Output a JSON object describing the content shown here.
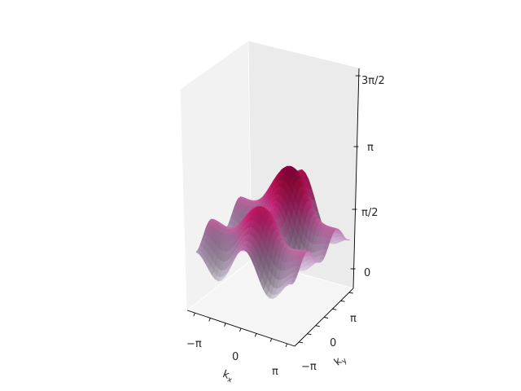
{
  "chart_data": {
    "type": "surface3d",
    "title": "",
    "xlabel": "k_x",
    "ylabel": "k_y",
    "zlabel": "",
    "x_ticks": [
      "−π",
      "0",
      "π"
    ],
    "y_ticks": [
      "−π",
      "0",
      "π"
    ],
    "z_ticks": [
      "0",
      "π/2",
      "π",
      "3π/2"
    ],
    "xlim": [
      -3.5,
      3.5
    ],
    "ylim": [
      -3.5,
      3.5
    ],
    "zlim": [
      -0.2,
      4.71
    ],
    "colormap": "PuRd",
    "colormap_stops": [
      "#f7f4f9",
      "#e7e1ef",
      "#d4b9da",
      "#c994c7",
      "#df65b0",
      "#e7298a",
      "#ce1256",
      "#980043",
      "#67001f"
    ],
    "surface_function": "z = 1.55 + 0.42*cos(kx)*(1 + 0.5*(ky/pi)) - 0.35*cos(2*ky) + 0.25*cos(2*kx) + 0.1*cos(2*kx)*cos(2*ky) + 0.2*(ky/pi)",
    "grid": true
  }
}
